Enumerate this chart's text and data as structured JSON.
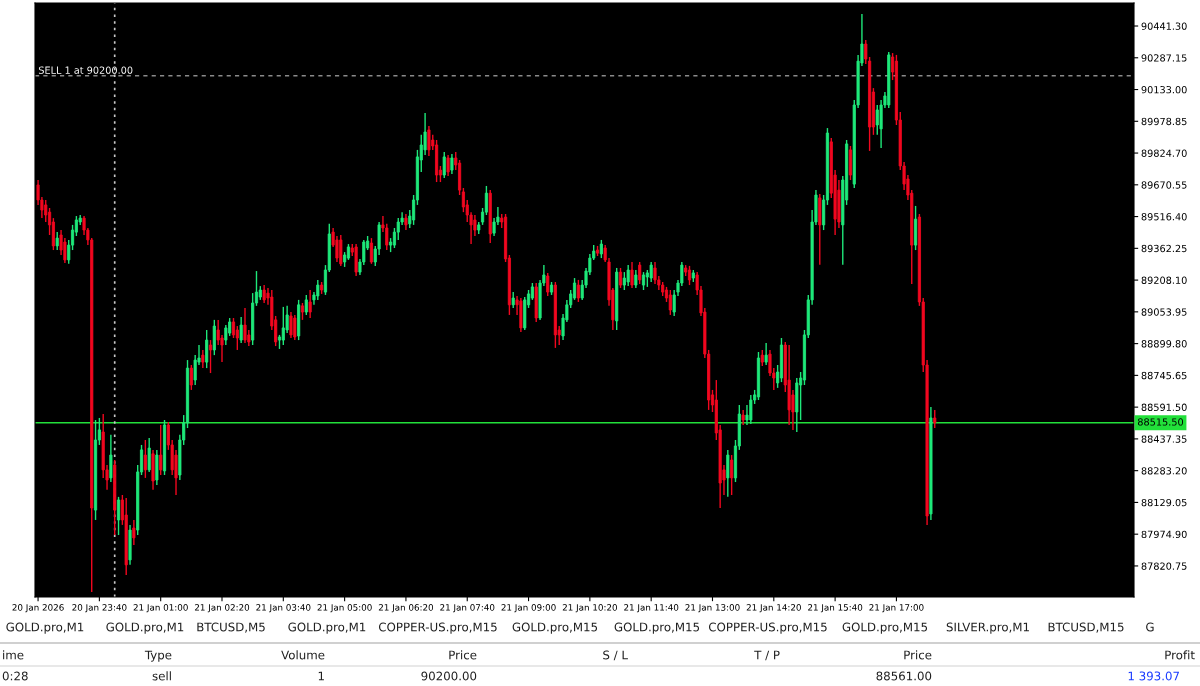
{
  "chart_data": {
    "type": "candlestick",
    "x": [
      "2026-01-20T22:20",
      "2026-01-20T22:25",
      "2026-01-20T22:30",
      "2026-01-20T22:35",
      "2026-01-20T22:40",
      "2026-01-20T22:45",
      "2026-01-20T22:50",
      "2026-01-20T22:55",
      "2026-01-20T23:00",
      "2026-01-20T23:05",
      "2026-01-20T23:10",
      "2026-01-20T23:15",
      "2026-01-20T23:20",
      "2026-01-20T23:25",
      "2026-01-20T23:30",
      "2026-01-20T23:35",
      "2026-01-20T23:40",
      "2026-01-20T23:45",
      "2026-01-20T23:50",
      "2026-01-20T23:55",
      "2026-01-21T00:00",
      "2026-01-21T00:05",
      "2026-01-21T00:10",
      "2026-01-21T00:15",
      "2026-01-21T00:20",
      "2026-01-21T00:25",
      "2026-01-21T00:30",
      "2026-01-21T00:35",
      "2026-01-21T00:40",
      "2026-01-21T00:45",
      "2026-01-21T00:50",
      "2026-01-21T00:55",
      "2026-01-21T01:00",
      "2026-01-21T01:05",
      "2026-01-21T01:10",
      "2026-01-21T01:15",
      "2026-01-21T01:20",
      "2026-01-21T01:25",
      "2026-01-21T01:30",
      "2026-01-21T01:35",
      "2026-01-21T01:40",
      "2026-01-21T01:45",
      "2026-01-21T01:50",
      "2026-01-21T01:55",
      "2026-01-21T02:00",
      "2026-01-21T02:05",
      "2026-01-21T02:10",
      "2026-01-21T02:15",
      "2026-01-21T02:20",
      "2026-01-21T02:25",
      "2026-01-21T02:30",
      "2026-01-21T02:35",
      "2026-01-21T02:40",
      "2026-01-21T02:45",
      "2026-01-21T02:50",
      "2026-01-21T02:55",
      "2026-01-21T03:00",
      "2026-01-21T03:05",
      "2026-01-21T03:10",
      "2026-01-21T03:15",
      "2026-01-21T03:20",
      "2026-01-21T03:25",
      "2026-01-21T03:30",
      "2026-01-21T03:35",
      "2026-01-21T03:40",
      "2026-01-21T03:45",
      "2026-01-21T03:50",
      "2026-01-21T03:55",
      "2026-01-21T04:00",
      "2026-01-21T04:05",
      "2026-01-21T04:10",
      "2026-01-21T04:15",
      "2026-01-21T04:20",
      "2026-01-21T04:25",
      "2026-01-21T04:30",
      "2026-01-21T04:35",
      "2026-01-21T04:40",
      "2026-01-21T04:45",
      "2026-01-21T04:50",
      "2026-01-21T04:55",
      "2026-01-21T05:00",
      "2026-01-21T05:05",
      "2026-01-21T05:10",
      "2026-01-21T05:15",
      "2026-01-21T05:20",
      "2026-01-21T05:25",
      "2026-01-21T05:30",
      "2026-01-21T05:35",
      "2026-01-21T05:40",
      "2026-01-21T05:45",
      "2026-01-21T05:50",
      "2026-01-21T05:55",
      "2026-01-21T06:00",
      "2026-01-21T06:05",
      "2026-01-21T06:10",
      "2026-01-21T06:15",
      "2026-01-21T06:20",
      "2026-01-21T06:25",
      "2026-01-21T06:30",
      "2026-01-21T06:35",
      "2026-01-21T06:40",
      "2026-01-21T06:45",
      "2026-01-21T06:50",
      "2026-01-21T06:55",
      "2026-01-21T07:00",
      "2026-01-21T07:05",
      "2026-01-21T07:10",
      "2026-01-21T07:15",
      "2026-01-21T07:20",
      "2026-01-21T07:25",
      "2026-01-21T07:30",
      "2026-01-21T07:35",
      "2026-01-21T07:40",
      "2026-01-21T07:45",
      "2026-01-21T07:50",
      "2026-01-21T07:55",
      "2026-01-21T08:00",
      "2026-01-21T08:05",
      "2026-01-21T08:10",
      "2026-01-21T08:15",
      "2026-01-21T08:20",
      "2026-01-21T08:25",
      "2026-01-21T08:30",
      "2026-01-21T08:35",
      "2026-01-21T08:40",
      "2026-01-21T08:45",
      "2026-01-21T08:50",
      "2026-01-21T08:55",
      "2026-01-21T09:00",
      "2026-01-21T09:05",
      "2026-01-21T09:10",
      "2026-01-21T09:15",
      "2026-01-21T09:20",
      "2026-01-21T09:25",
      "2026-01-21T09:30",
      "2026-01-21T09:35",
      "2026-01-21T09:40",
      "2026-01-21T09:45",
      "2026-01-21T09:50",
      "2026-01-21T09:55",
      "2026-01-21T10:00",
      "2026-01-21T10:05",
      "2026-01-21T10:10",
      "2026-01-21T10:15",
      "2026-01-21T10:20",
      "2026-01-21T10:25",
      "2026-01-21T10:30",
      "2026-01-21T10:35",
      "2026-01-21T10:40",
      "2026-01-21T10:45",
      "2026-01-21T10:50",
      "2026-01-21T10:55",
      "2026-01-21T11:00",
      "2026-01-21T11:05",
      "2026-01-21T11:10",
      "2026-01-21T11:15",
      "2026-01-21T11:20",
      "2026-01-21T11:25",
      "2026-01-21T11:30",
      "2026-01-21T11:35",
      "2026-01-21T11:40",
      "2026-01-21T11:45",
      "2026-01-21T11:50",
      "2026-01-21T11:55",
      "2026-01-21T12:00",
      "2026-01-21T12:05",
      "2026-01-21T12:10",
      "2026-01-21T12:15",
      "2026-01-21T12:20",
      "2026-01-21T12:25",
      "2026-01-21T12:30",
      "2026-01-21T12:35",
      "2026-01-21T12:40",
      "2026-01-21T12:45",
      "2026-01-21T12:50",
      "2026-01-21T12:55",
      "2026-01-21T13:00",
      "2026-01-21T13:05",
      "2026-01-21T13:10",
      "2026-01-21T13:15",
      "2026-01-21T13:20",
      "2026-01-21T13:25",
      "2026-01-21T13:30",
      "2026-01-21T13:35",
      "2026-01-21T13:40",
      "2026-01-21T13:45",
      "2026-01-21T13:50",
      "2026-01-21T13:55",
      "2026-01-21T14:00",
      "2026-01-21T14:05",
      "2026-01-21T14:10",
      "2026-01-21T14:15",
      "2026-01-21T14:20",
      "2026-01-21T14:25",
      "2026-01-21T14:30",
      "2026-01-21T14:35",
      "2026-01-21T14:40",
      "2026-01-21T14:45",
      "2026-01-21T14:50",
      "2026-01-21T14:55",
      "2026-01-21T15:00",
      "2026-01-21T15:05",
      "2026-01-21T15:10",
      "2026-01-21T15:15",
      "2026-01-21T15:20",
      "2026-01-21T15:25",
      "2026-01-21T15:30",
      "2026-01-21T15:35",
      "2026-01-21T15:40",
      "2026-01-21T15:45",
      "2026-01-21T15:50",
      "2026-01-21T15:55",
      "2026-01-21T16:00",
      "2026-01-21T16:05",
      "2026-01-21T16:10",
      "2026-01-21T16:15",
      "2026-01-21T16:20",
      "2026-01-21T16:25",
      "2026-01-21T16:30",
      "2026-01-21T16:35",
      "2026-01-21T16:40",
      "2026-01-21T16:45",
      "2026-01-21T16:50",
      "2026-01-21T16:55",
      "2026-01-21T17:00",
      "2026-01-21T17:05",
      "2026-01-21T17:10",
      "2026-01-21T17:15",
      "2026-01-21T17:20",
      "2026-01-21T17:25",
      "2026-01-21T17:30",
      "2026-01-21T17:35",
      "2026-01-21T17:40",
      "2026-01-21T17:45",
      "2026-01-21T17:50"
    ],
    "ohlc": [
      [
        89670,
        89694,
        89573,
        89597
      ],
      [
        89597,
        89611,
        89509,
        89548
      ],
      [
        89573,
        89597,
        89490,
        89524
      ],
      [
        89538,
        89558,
        89427,
        89476
      ],
      [
        89490,
        89509,
        89354,
        89374
      ],
      [
        89374,
        89441,
        89354,
        89412
      ],
      [
        89427,
        89451,
        89330,
        89354
      ],
      [
        89393,
        89412,
        89291,
        89306
      ],
      [
        89306,
        89403,
        89287,
        89378
      ],
      [
        89378,
        89476,
        89354,
        89451
      ],
      [
        89441,
        89519,
        89422,
        89500
      ],
      [
        89490,
        89524,
        89476,
        89509
      ],
      [
        89509,
        89519,
        89427,
        89451
      ],
      [
        89451,
        89461,
        89378,
        89403
      ],
      [
        89403,
        89412,
        87694,
        88102
      ],
      [
        88092,
        88529,
        88044,
        88432
      ],
      [
        88432,
        88539,
        88408,
        88481
      ],
      [
        88471,
        88558,
        88248,
        88287
      ],
      [
        88287,
        88311,
        88190,
        88238
      ],
      [
        88248,
        88457,
        88228,
        88359
      ],
      [
        88311,
        88335,
        87971,
        88092
      ],
      [
        88044,
        88156,
        87971,
        88141
      ],
      [
        88141,
        88165,
        88020,
        88044
      ],
      [
        88068,
        88151,
        87777,
        87826
      ],
      [
        87850,
        88020,
        87826,
        87995
      ],
      [
        88005,
        88044,
        87922,
        87957
      ],
      [
        87995,
        88311,
        87971,
        88277
      ],
      [
        88277,
        88408,
        88262,
        88384
      ],
      [
        88359,
        88432,
        88248,
        88287
      ],
      [
        88287,
        88442,
        88277,
        88393
      ],
      [
        88365,
        88384,
        88190,
        88233
      ],
      [
        88238,
        88384,
        88214,
        88359
      ],
      [
        88359,
        88505,
        88262,
        88287
      ],
      [
        88282,
        88529,
        88262,
        88505
      ],
      [
        88505,
        88519,
        88384,
        88408
      ],
      [
        88408,
        88432,
        88262,
        88287
      ],
      [
        88359,
        88384,
        88165,
        88248
      ],
      [
        88262,
        88457,
        88238,
        88432
      ],
      [
        88432,
        88553,
        88408,
        88515
      ],
      [
        88515,
        88820,
        88490,
        88781
      ],
      [
        88781,
        88796,
        88675,
        88699
      ],
      [
        88723,
        88844,
        88699,
        88820
      ],
      [
        88810,
        88893,
        88796,
        88830
      ],
      [
        88844,
        88869,
        88781,
        88810
      ],
      [
        88810,
        88966,
        88781,
        88917
      ],
      [
        88893,
        88917,
        88757,
        88869
      ],
      [
        88869,
        89015,
        88844,
        88985
      ],
      [
        88966,
        89015,
        88893,
        88917
      ],
      [
        88927,
        88942,
        88810,
        88893
      ],
      [
        88917,
        88990,
        88893,
        88976
      ],
      [
        88951,
        89024,
        88937,
        89005
      ],
      [
        89005,
        89024,
        88927,
        88942
      ],
      [
        88966,
        88985,
        88869,
        88927
      ],
      [
        88917,
        89029,
        88903,
        88990
      ],
      [
        88990,
        89073,
        88903,
        88917
      ],
      [
        88942,
        88966,
        88888,
        88908
      ],
      [
        88917,
        89145,
        88893,
        89097
      ],
      [
        89097,
        89252,
        89083,
        89150
      ],
      [
        89126,
        89179,
        89112,
        89160
      ],
      [
        89160,
        89184,
        89097,
        89112
      ],
      [
        89145,
        89170,
        89088,
        89121
      ],
      [
        89126,
        89160,
        88966,
        88985
      ],
      [
        89015,
        89034,
        88888,
        88908
      ],
      [
        88917,
        88942,
        88874,
        88932
      ],
      [
        88917,
        89078,
        88893,
        88976
      ],
      [
        88966,
        89083,
        88951,
        89039
      ],
      [
        89034,
        89053,
        88927,
        88942
      ],
      [
        89024,
        89039,
        88917,
        88932
      ],
      [
        88937,
        89112,
        88917,
        89088
      ],
      [
        89083,
        89097,
        89015,
        89053
      ],
      [
        89053,
        89136,
        89039,
        89112
      ],
      [
        89102,
        89160,
        89024,
        89053
      ],
      [
        89112,
        89150,
        89088,
        89136
      ],
      [
        89131,
        89209,
        89112,
        89184
      ],
      [
        89184,
        89199,
        89141,
        89160
      ],
      [
        89150,
        89281,
        89136,
        89257
      ],
      [
        89257,
        89481,
        89247,
        89432
      ],
      [
        89441,
        89461,
        89369,
        89378
      ],
      [
        89403,
        89422,
        89296,
        89315
      ],
      [
        89403,
        89427,
        89277,
        89287
      ],
      [
        89296,
        89344,
        89272,
        89330
      ],
      [
        89315,
        89383,
        89306,
        89369
      ],
      [
        89364,
        89383,
        89325,
        89344
      ],
      [
        89369,
        89383,
        89228,
        89247
      ],
      [
        89247,
        89311,
        89233,
        89296
      ],
      [
        89296,
        89403,
        89281,
        89393
      ],
      [
        89364,
        89422,
        89354,
        89398
      ],
      [
        89388,
        89412,
        89287,
        89296
      ],
      [
        89296,
        89374,
        89277,
        89359
      ],
      [
        89359,
        89490,
        89330,
        89476
      ],
      [
        89476,
        89519,
        89441,
        89461
      ],
      [
        89461,
        89481,
        89354,
        89378
      ],
      [
        89378,
        89412,
        89344,
        89393
      ],
      [
        89378,
        89461,
        89364,
        89441
      ],
      [
        89441,
        89509,
        89403,
        89490
      ],
      [
        89490,
        89538,
        89476,
        89509
      ],
      [
        89509,
        89529,
        89451,
        89476
      ],
      [
        89481,
        89548,
        89461,
        89519
      ],
      [
        89500,
        89621,
        89476,
        89597
      ],
      [
        89597,
        89840,
        89573,
        89806
      ],
      [
        89791,
        89913,
        89733,
        89864
      ],
      [
        89840,
        90019,
        89815,
        89927
      ],
      [
        89937,
        89956,
        89810,
        89840
      ],
      [
        89888,
        89913,
        89840,
        89859
      ],
      [
        89864,
        89888,
        89684,
        89718
      ],
      [
        89742,
        89762,
        89684,
        89718
      ],
      [
        89718,
        89830,
        89704,
        89806
      ],
      [
        89801,
        89815,
        89713,
        89733
      ],
      [
        89742,
        89820,
        89723,
        89801
      ],
      [
        89801,
        89830,
        89742,
        89767
      ],
      [
        89776,
        89791,
        89621,
        89645
      ],
      [
        89636,
        89655,
        89538,
        89563
      ],
      [
        89573,
        89597,
        89490,
        89524
      ],
      [
        89524,
        89538,
        89383,
        89476
      ],
      [
        89500,
        89524,
        89422,
        89451
      ],
      [
        89451,
        89490,
        89432,
        89476
      ],
      [
        89490,
        89558,
        89476,
        89538
      ],
      [
        89538,
        89665,
        89524,
        89630
      ],
      [
        89630,
        89645,
        89388,
        89432
      ],
      [
        89436,
        89509,
        89422,
        89490
      ],
      [
        89490,
        89563,
        89476,
        89514
      ],
      [
        89509,
        89529,
        89461,
        89490
      ],
      [
        89514,
        89529,
        89296,
        89311
      ],
      [
        89315,
        89330,
        89039,
        89088
      ],
      [
        89088,
        89150,
        89073,
        89121
      ],
      [
        89112,
        89131,
        89039,
        89088
      ],
      [
        89107,
        89121,
        88956,
        88976
      ],
      [
        88976,
        89126,
        88966,
        89112
      ],
      [
        89088,
        89160,
        89073,
        89141
      ],
      [
        89121,
        89194,
        89112,
        89175
      ],
      [
        89175,
        89194,
        89005,
        89024
      ],
      [
        89024,
        89209,
        89015,
        89194
      ],
      [
        89194,
        89281,
        89179,
        89233
      ],
      [
        89228,
        89243,
        89131,
        89150
      ],
      [
        89150,
        89199,
        89136,
        89184
      ],
      [
        89184,
        89199,
        88879,
        88942
      ],
      [
        88966,
        88985,
        88893,
        88942
      ],
      [
        88937,
        89044,
        88917,
        89024
      ],
      [
        89015,
        89112,
        89005,
        89088
      ],
      [
        89088,
        89160,
        89073,
        89141
      ],
      [
        89121,
        89218,
        89112,
        89194
      ],
      [
        89184,
        89209,
        89102,
        89121
      ],
      [
        89121,
        89209,
        89112,
        89184
      ],
      [
        89184,
        89267,
        89170,
        89252
      ],
      [
        89247,
        89335,
        89233,
        89315
      ],
      [
        89315,
        89378,
        89306,
        89349
      ],
      [
        89354,
        89374,
        89325,
        89339
      ],
      [
        89335,
        89403,
        89315,
        89383
      ],
      [
        89364,
        89378,
        89296,
        89306
      ],
      [
        89296,
        89315,
        89083,
        89112
      ],
      [
        89160,
        89170,
        88966,
        89015
      ],
      [
        89010,
        89267,
        88966,
        89247
      ],
      [
        89247,
        89267,
        89170,
        89184
      ],
      [
        89184,
        89247,
        89160,
        89218
      ],
      [
        89199,
        89281,
        89179,
        89257
      ],
      [
        89257,
        89296,
        89170,
        89184
      ],
      [
        89184,
        89257,
        89170,
        89233
      ],
      [
        89281,
        89296,
        89189,
        89209
      ],
      [
        89184,
        89247,
        89160,
        89233
      ],
      [
        89223,
        89257,
        89175,
        89243
      ],
      [
        89218,
        89296,
        89199,
        89281
      ],
      [
        89267,
        89296,
        89189,
        89209
      ],
      [
        89209,
        89228,
        89160,
        89184
      ],
      [
        89184,
        89199,
        89131,
        89150
      ],
      [
        89160,
        89175,
        89102,
        89121
      ],
      [
        89136,
        89160,
        89039,
        89063
      ],
      [
        89053,
        89160,
        89034,
        89136
      ],
      [
        89150,
        89209,
        89131,
        89194
      ],
      [
        89194,
        89296,
        89179,
        89281
      ],
      [
        89267,
        89281,
        89228,
        89247
      ],
      [
        89257,
        89277,
        89184,
        89209
      ],
      [
        89218,
        89257,
        89199,
        89243
      ],
      [
        89233,
        89247,
        89136,
        89160
      ],
      [
        89160,
        89179,
        89034,
        89049
      ],
      [
        89053,
        89073,
        88830,
        88849
      ],
      [
        88849,
        88869,
        88578,
        88626
      ],
      [
        88651,
        88675,
        88568,
        88602
      ],
      [
        88626,
        88723,
        88432,
        88466
      ],
      [
        88481,
        88505,
        88102,
        88223
      ],
      [
        88287,
        88311,
        88165,
        88238
      ],
      [
        88248,
        88384,
        88156,
        88359
      ],
      [
        88335,
        88359,
        88165,
        88248
      ],
      [
        88248,
        88432,
        88228,
        88403
      ],
      [
        88403,
        88602,
        88384,
        88558
      ],
      [
        88553,
        88578,
        88505,
        88529
      ],
      [
        88529,
        88602,
        88505,
        88553
      ],
      [
        88529,
        88651,
        88510,
        88626
      ],
      [
        88626,
        88675,
        88607,
        88651
      ],
      [
        88641,
        88859,
        88626,
        88830
      ],
      [
        88844,
        88869,
        88791,
        88810
      ],
      [
        88810,
        88903,
        88796,
        88844
      ],
      [
        88849,
        88869,
        88743,
        88757
      ],
      [
        88757,
        88781,
        88675,
        88733
      ],
      [
        88709,
        88796,
        88685,
        88762
      ],
      [
        88733,
        88927,
        88713,
        88893
      ],
      [
        88893,
        88908,
        88665,
        88699
      ],
      [
        88723,
        88893,
        88505,
        88578
      ],
      [
        88651,
        88675,
        88481,
        88568
      ],
      [
        88568,
        88733,
        88471,
        88709
      ],
      [
        88699,
        88762,
        88529,
        88733
      ],
      [
        88723,
        88966,
        88699,
        88942
      ],
      [
        88942,
        89136,
        88927,
        89112
      ],
      [
        89112,
        89548,
        89088,
        89490
      ],
      [
        89490,
        89645,
        89476,
        89621
      ],
      [
        89607,
        89626,
        89282,
        89476
      ],
      [
        89476,
        89621,
        89451,
        89597
      ],
      [
        89597,
        89946,
        89573,
        89922
      ],
      [
        89879,
        89898,
        89607,
        89630
      ],
      [
        89718,
        89742,
        89427,
        89504
      ],
      [
        89645,
        89694,
        89461,
        89490
      ],
      [
        89476,
        89713,
        89282,
        89694
      ],
      [
        89597,
        89888,
        89573,
        89869
      ],
      [
        89840,
        89859,
        89694,
        89718
      ],
      [
        89674,
        90082,
        89655,
        90058
      ],
      [
        90058,
        90301,
        90043,
        90271
      ],
      [
        90262,
        90500,
        90247,
        90354
      ],
      [
        90354,
        90373,
        90257,
        90281
      ],
      [
        90271,
        90291,
        89835,
        89951
      ],
      [
        90121,
        90140,
        89913,
        89951
      ],
      [
        89961,
        90058,
        89913,
        90034
      ],
      [
        89942,
        90082,
        89849,
        90058
      ],
      [
        90058,
        90121,
        90043,
        90102
      ],
      [
        90058,
        90315,
        90043,
        90301
      ],
      [
        90291,
        90310,
        90179,
        90218
      ],
      [
        90271,
        90301,
        89961,
        89985
      ],
      [
        89985,
        90024,
        89742,
        89762
      ],
      [
        89762,
        89781,
        89645,
        89674
      ],
      [
        89699,
        89718,
        89597,
        89621
      ],
      [
        89630,
        89645,
        89189,
        89378
      ],
      [
        89378,
        89568,
        89354,
        89504
      ],
      [
        89514,
        89529,
        89083,
        89102
      ],
      [
        89102,
        89121,
        88762,
        88796
      ],
      [
        88796,
        88820,
        88020,
        88063
      ],
      [
        88073,
        88592,
        88044,
        88539
      ],
      [
        88539,
        88578,
        88490,
        88515.5
      ]
    ],
    "xlim": [
      "2026-01-20T22:16",
      "2026-01-21T22:10"
    ],
    "xticks": [
      {
        "value": "2026-01-20T22:20",
        "label": "20 Jan 2026"
      },
      {
        "value": "2026-01-20T23:40",
        "label": "20 Jan 23:40"
      },
      {
        "value": "2026-01-21T01:00",
        "label": "21 Jan 01:00"
      },
      {
        "value": "2026-01-21T02:20",
        "label": "21 Jan 02:20"
      },
      {
        "value": "2026-01-21T03:40",
        "label": "21 Jan 03:40"
      },
      {
        "value": "2026-01-21T05:00",
        "label": "21 Jan 05:00"
      },
      {
        "value": "2026-01-21T06:20",
        "label": "21 Jan 06:20"
      },
      {
        "value": "2026-01-21T07:40",
        "label": "21 Jan 07:40"
      },
      {
        "value": "2026-01-21T09:00",
        "label": "21 Jan 09:00"
      },
      {
        "value": "2026-01-21T10:20",
        "label": "21 Jan 10:20"
      },
      {
        "value": "2026-01-21T11:40",
        "label": "21 Jan 11:40"
      },
      {
        "value": "2026-01-21T13:00",
        "label": "21 Jan 13:00"
      },
      {
        "value": "2026-01-21T14:20",
        "label": "21 Jan 14:20"
      },
      {
        "value": "2026-01-21T15:40",
        "label": "21 Jan 15:40"
      },
      {
        "value": "2026-01-21T17:00",
        "label": "21 Jan 17:00"
      }
    ],
    "ylim": [
      87670,
      90553
    ],
    "yticks": [
      {
        "value": 90441.3,
        "label": "90441.30"
      },
      {
        "value": 90287.15,
        "label": "90287.15"
      },
      {
        "value": 90133.0,
        "label": "90133.00"
      },
      {
        "value": 89978.85,
        "label": "89978.85"
      },
      {
        "value": 89824.7,
        "label": "89824.70"
      },
      {
        "value": 89670.55,
        "label": "89670.55"
      },
      {
        "value": 89516.4,
        "label": "89516.40"
      },
      {
        "value": 89362.25,
        "label": "89362.25"
      },
      {
        "value": 89208.1,
        "label": "89208.10"
      },
      {
        "value": 89053.95,
        "label": "89053.95"
      },
      {
        "value": 88899.8,
        "label": "88899.80"
      },
      {
        "value": 88745.65,
        "label": "88745.65"
      },
      {
        "value": 88591.5,
        "label": "88591.50"
      },
      {
        "value": 88437.35,
        "label": "88437.35"
      },
      {
        "value": 88283.2,
        "label": "88283.20"
      },
      {
        "value": 88129.05,
        "label": "88129.05"
      },
      {
        "value": 87974.9,
        "label": "87974.90"
      },
      {
        "value": 87820.75,
        "label": "87820.75"
      }
    ],
    "ref_lines": [
      {
        "axis": "y",
        "value": 90200,
        "label": "SELL 1 at 90200.00",
        "color": "#8a8a8a",
        "line_style": "dashed"
      },
      {
        "axis": "y",
        "value": 88515.5,
        "label": "88515.50",
        "color": "#22e03a",
        "line_style": "solid"
      },
      {
        "axis": "x",
        "value": "2026-01-21T00:00",
        "color": "#c8c8c8",
        "line_style": "dotted"
      }
    ],
    "annotations": [
      "GOLD.pro,M1",
      "GOLD.pro,M1",
      "BTCUSD,M5",
      "GOLD.pro,M1",
      "COPPER-US.pro,M15",
      "GOLD.pro,M15",
      "GOLD.pro,M15",
      "COPPER-US.pro,M15",
      "GOLD.pro,M15",
      "SILVER.pro,M1",
      "BTCUSD,M15",
      "G",
      "ime",
      "Type",
      "Volume",
      "Price",
      "S / L",
      "T / P",
      "Price",
      "Profit",
      "0:28",
      "sell",
      "1",
      "90200.00",
      "88561.00",
      "1 393.07"
    ]
  }
}
